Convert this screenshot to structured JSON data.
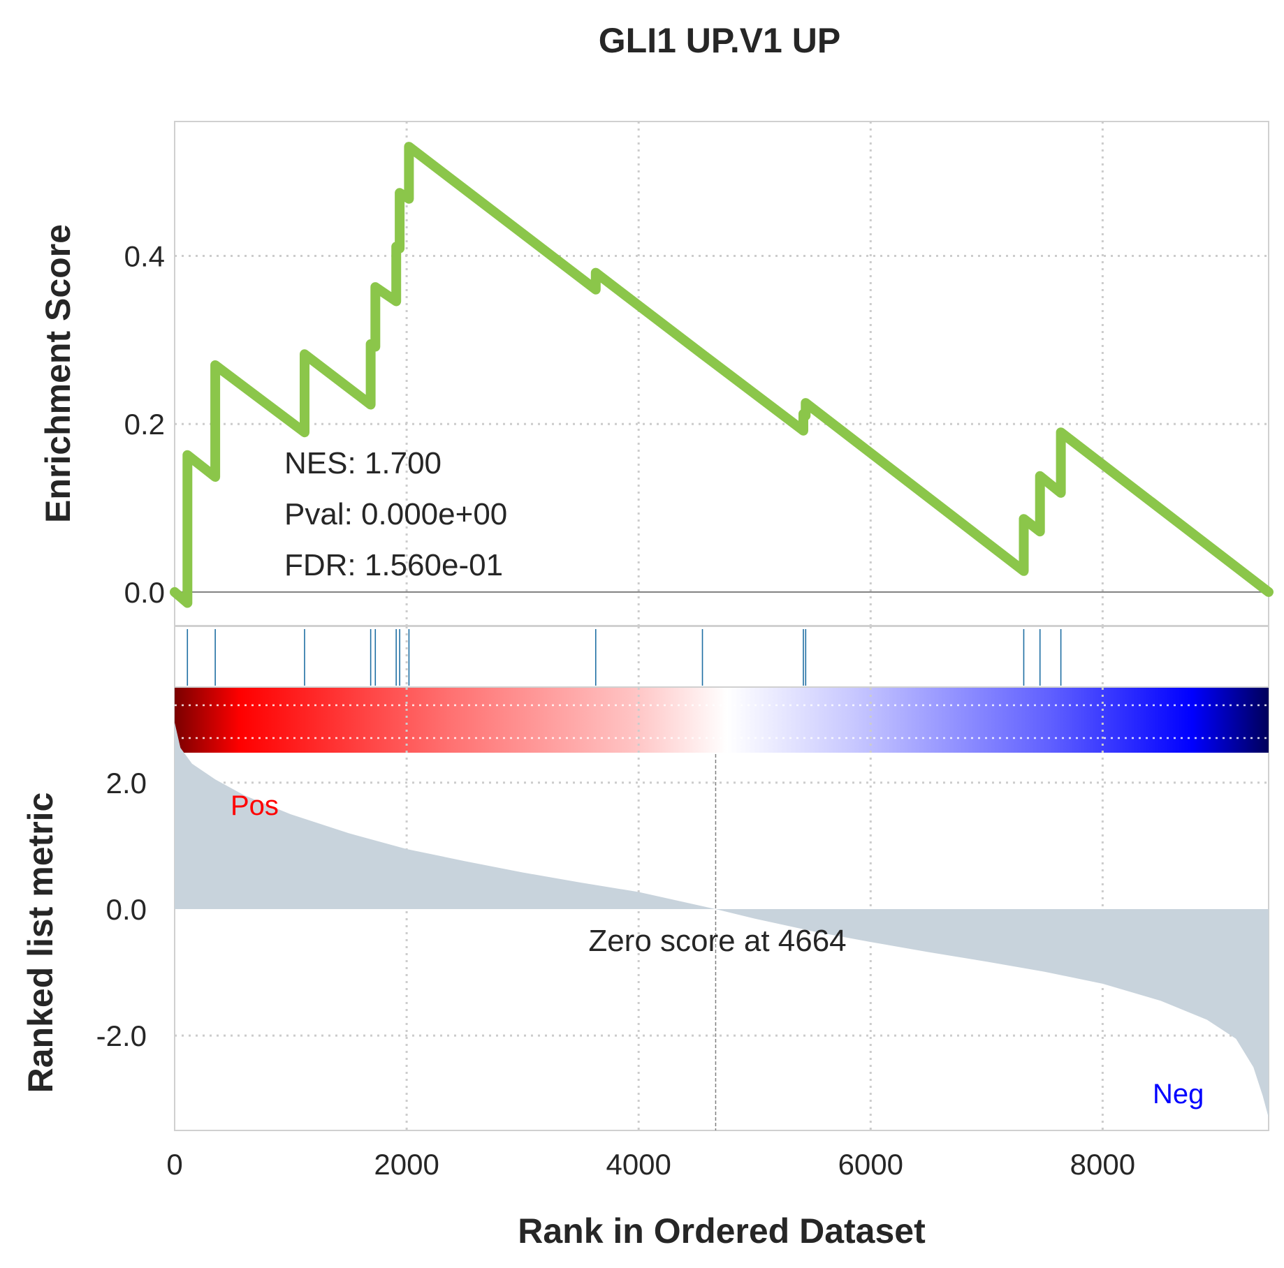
{
  "chart_data": {
    "type": "line",
    "title": "GLI1 UP.V1 UP",
    "xlabel": "Rank in Ordered Dataset",
    "xlim": [
      0,
      9431
    ],
    "x_ticks": [
      0,
      2000,
      4000,
      6000,
      8000
    ],
    "x_tick_labels": [
      "0",
      "2000",
      "4000",
      "6000",
      "8000"
    ],
    "grid": true,
    "line_color": "#8bc64a",
    "hit_color": "#1f6fa3",
    "fill_color": "#c8d3dc",
    "enrichment": {
      "ylabel": "Enrichment Score",
      "ylim": [
        -0.04,
        0.56
      ],
      "y_ticks": [
        0.0,
        0.2,
        0.4
      ],
      "y_tick_labels": [
        "0.0",
        "0.2",
        "0.4"
      ],
      "points": [
        [
          0,
          0.0
        ],
        [
          110,
          -0.013
        ],
        [
          110,
          0.163
        ],
        [
          350,
          0.137
        ],
        [
          350,
          0.27
        ],
        [
          1120,
          0.19
        ],
        [
          1120,
          0.283
        ],
        [
          1690,
          0.223
        ],
        [
          1690,
          0.295
        ],
        [
          1730,
          0.292
        ],
        [
          1730,
          0.363
        ],
        [
          1910,
          0.346
        ],
        [
          1910,
          0.411
        ],
        [
          1940,
          0.409
        ],
        [
          1940,
          0.475
        ],
        [
          2020,
          0.468
        ],
        [
          2020,
          0.53
        ],
        [
          3630,
          0.36
        ],
        [
          3630,
          0.38
        ],
        [
          4550,
          0.283
        ],
        [
          5420,
          0.192
        ],
        [
          5420,
          0.212
        ],
        [
          5440,
          0.21
        ],
        [
          5440,
          0.225
        ],
        [
          7320,
          0.025
        ],
        [
          7320,
          0.087
        ],
        [
          7460,
          0.072
        ],
        [
          7460,
          0.138
        ],
        [
          7640,
          0.118
        ],
        [
          7640,
          0.19
        ],
        [
          9431,
          0.0
        ]
      ]
    },
    "hits": [
      110,
      350,
      1120,
      1690,
      1730,
      1910,
      1940,
      2020,
      3630,
      4550,
      5420,
      5440,
      7320,
      7460,
      7640
    ],
    "stats": {
      "nes": "NES: 1.700",
      "pval": "Pval: 0.000e+00",
      "fdr": "FDR: 1.560e-01"
    },
    "ranked_metric": {
      "ylabel": "Ranked list metric",
      "ylim": [
        -3.5,
        3.5
      ],
      "y_ticks": [
        2.0,
        0.0,
        -2.0
      ],
      "y_tick_labels": [
        "2.0",
        "0.0",
        "-2.0"
      ],
      "profile": [
        [
          0,
          2.95
        ],
        [
          50,
          2.55
        ],
        [
          150,
          2.3
        ],
        [
          350,
          2.05
        ],
        [
          600,
          1.8
        ],
        [
          1000,
          1.5
        ],
        [
          1500,
          1.2
        ],
        [
          2000,
          0.95
        ],
        [
          2500,
          0.76
        ],
        [
          3000,
          0.58
        ],
        [
          3500,
          0.42
        ],
        [
          4000,
          0.27
        ],
        [
          4664,
          0.0
        ],
        [
          5000,
          -0.15
        ],
        [
          5500,
          -0.35
        ],
        [
          6000,
          -0.52
        ],
        [
          6500,
          -0.68
        ],
        [
          7000,
          -0.83
        ],
        [
          7500,
          -0.99
        ],
        [
          8000,
          -1.18
        ],
        [
          8500,
          -1.45
        ],
        [
          8900,
          -1.75
        ],
        [
          9150,
          -2.05
        ],
        [
          9300,
          -2.5
        ],
        [
          9380,
          -2.95
        ],
        [
          9431,
          -3.3
        ]
      ],
      "zero_rank": 4664,
      "zero_label": "Zero score at 4664",
      "pos_label": "Pos",
      "neg_label": "Neg"
    }
  }
}
